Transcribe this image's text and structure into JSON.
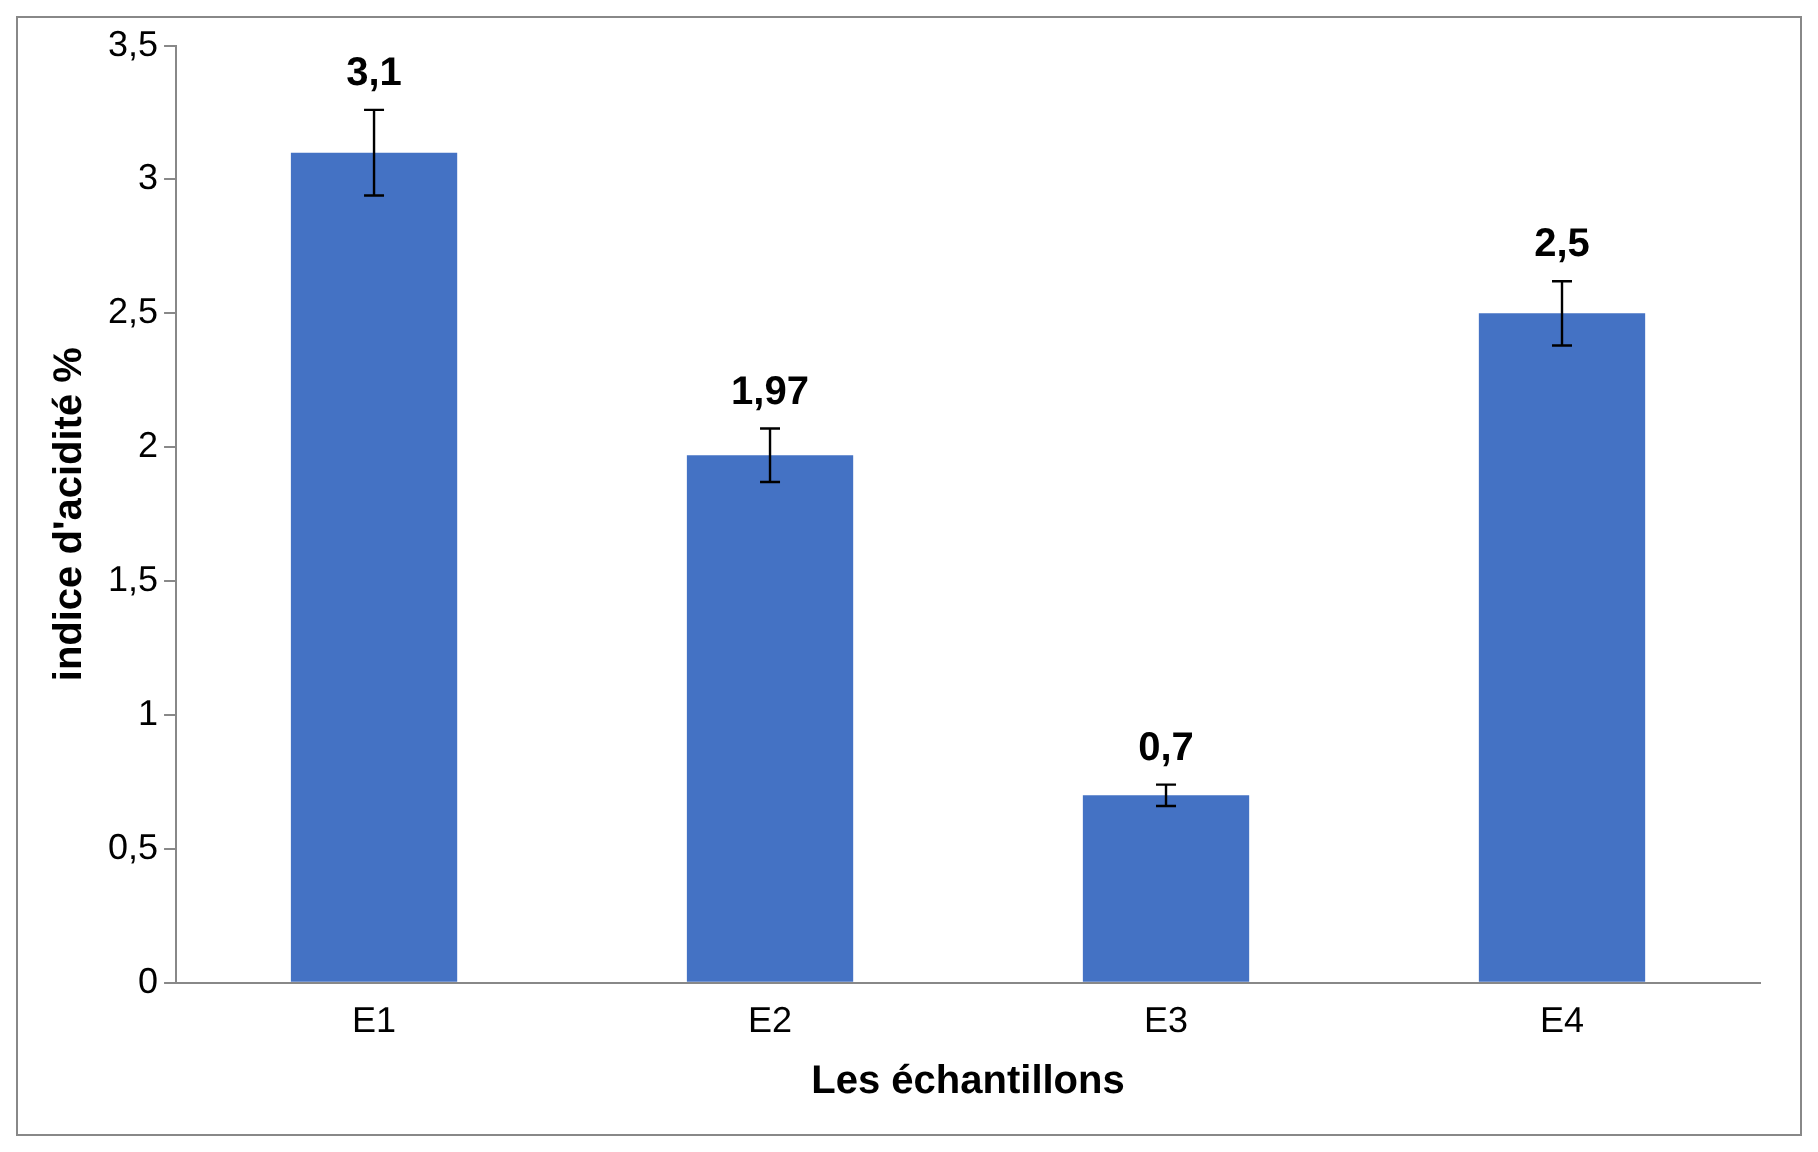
{
  "chart_data": {
    "type": "bar",
    "xlabel": "Les échantillons",
    "ylabel": "indice d'acidité %",
    "categories": [
      "E1",
      "E2",
      "E3",
      "E4"
    ],
    "values": [
      3.1,
      1.97,
      0.7,
      2.5
    ],
    "errors": [
      0.16,
      0.1,
      0.04,
      0.12
    ],
    "value_labels": [
      "3,1",
      "1,97",
      "0,7",
      "2,5"
    ],
    "color": "#4472c4",
    "ylim": [
      0,
      3.5
    ],
    "yticks": [
      {
        "value": 0,
        "label": "0"
      },
      {
        "value": 0.5,
        "label": "0,5"
      },
      {
        "value": 1,
        "label": "1"
      },
      {
        "value": 1.5,
        "label": "1,5"
      },
      {
        "value": 2,
        "label": "2"
      },
      {
        "value": 2.5,
        "label": "2,5"
      },
      {
        "value": 3,
        "label": "3"
      },
      {
        "value": 3.5,
        "label": "3,5"
      }
    ],
    "grid": false,
    "legend": false
  }
}
